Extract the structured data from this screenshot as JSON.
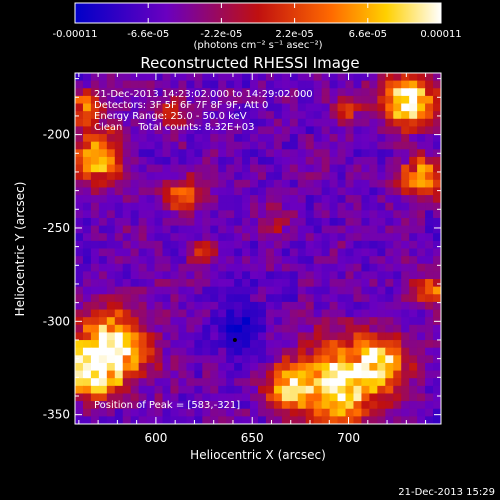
{
  "chart_data": {
    "type": "heatmap",
    "title": "Reconstructed RHESSI Image",
    "xlabel": "Heliocentric X (arcsec)",
    "ylabel": "Heliocentric Y (arcsec)",
    "xlim": [
      558,
      748
    ],
    "ylim": [
      -355,
      -167
    ],
    "x_ticks": [
      "600",
      "650",
      "700"
    ],
    "x_tick_values": [
      600,
      650,
      700
    ],
    "y_ticks": [
      "-200",
      "-250",
      "-300",
      "-350"
    ],
    "y_tick_values": [
      -200,
      -250,
      -300,
      -350
    ],
    "colorbar": {
      "range": [
        -0.00011,
        0.00011
      ],
      "tick_labels": [
        "-0.00011",
        "-6.6e-05",
        "-2.2e-05",
        "2.2e-05",
        "6.6e-05",
        "0.00011"
      ],
      "tick_values": [
        -0.00011,
        -6.6e-05,
        -2.2e-05,
        2.2e-05,
        6.6e-05,
        0.00011
      ],
      "unit_label": "(photons cm⁻² s⁻¹ asec⁻²)",
      "colors": [
        "#0000c8",
        "#6a00c0",
        "#c01010",
        "#ff6a00",
        "#ffd000",
        "#ffffff"
      ]
    },
    "annotations": [
      "21-Dec-2013 14:23:02.000 to 14:29:02.000",
      "Detectors: 3F 5F 6F 7F 8F 9F, Att 0",
      "Energy Range: 25.0 - 50.0 keV",
      "Clean     Total counts: 8.32E+03"
    ],
    "peak_label": "Position of Peak = [583,-321]",
    "peak": [
      583,
      -321
    ]
  },
  "timestamp": "21-Dec-2013 15:29"
}
